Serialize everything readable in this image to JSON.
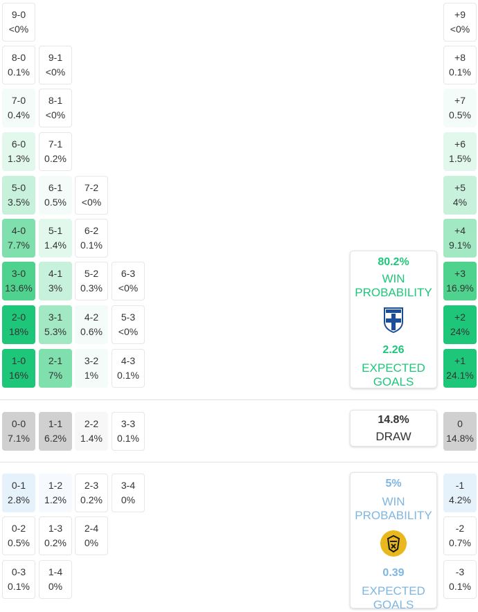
{
  "colors": {
    "home": "#1ec67a",
    "away": "#7fb6e0",
    "draw_text": "#333333",
    "home_shades": [
      "#ffffff",
      "#f3fcf8",
      "#e2f8ed",
      "#c8f1dc",
      "#a2e8c3",
      "#7fdfad",
      "#4fd28e",
      "#1ec67a"
    ],
    "away_shades": [
      "#ffffff",
      "#f6fafe",
      "#e5f1fb"
    ],
    "draw_shades": [
      "#ffffff",
      "#f7f7f7",
      "#e6e6e6",
      "#d0d0d0"
    ]
  },
  "home_scores": [
    {
      "score": "9-0",
      "pct": "<0%",
      "shade": 0
    },
    {
      "score": "8-0",
      "pct": "0.1%",
      "shade": 0
    },
    {
      "score": "9-1",
      "pct": "<0%",
      "shade": 0
    },
    {
      "score": "7-0",
      "pct": "0.4%",
      "shade": 1
    },
    {
      "score": "8-1",
      "pct": "<0%",
      "shade": 0
    },
    {
      "score": "6-0",
      "pct": "1.3%",
      "shade": 2
    },
    {
      "score": "7-1",
      "pct": "0.2%",
      "shade": 0
    },
    {
      "score": "5-0",
      "pct": "3.5%",
      "shade": 3
    },
    {
      "score": "6-1",
      "pct": "0.5%",
      "shade": 1
    },
    {
      "score": "7-2",
      "pct": "<0%",
      "shade": 0
    },
    {
      "score": "4-0",
      "pct": "7.7%",
      "shade": 5
    },
    {
      "score": "5-1",
      "pct": "1.4%",
      "shade": 2
    },
    {
      "score": "6-2",
      "pct": "0.1%",
      "shade": 0
    },
    {
      "score": "3-0",
      "pct": "13.6%",
      "shade": 6
    },
    {
      "score": "4-1",
      "pct": "3%",
      "shade": 3
    },
    {
      "score": "5-2",
      "pct": "0.3%",
      "shade": 0
    },
    {
      "score": "6-3",
      "pct": "<0%",
      "shade": 0
    },
    {
      "score": "2-0",
      "pct": "18%",
      "shade": 7
    },
    {
      "score": "3-1",
      "pct": "5.3%",
      "shade": 4
    },
    {
      "score": "4-2",
      "pct": "0.6%",
      "shade": 1
    },
    {
      "score": "5-3",
      "pct": "<0%",
      "shade": 0
    },
    {
      "score": "1-0",
      "pct": "16%",
      "shade": 7
    },
    {
      "score": "2-1",
      "pct": "7%",
      "shade": 5
    },
    {
      "score": "3-2",
      "pct": "1%",
      "shade": 1
    },
    {
      "score": "4-3",
      "pct": "0.1%",
      "shade": 0
    }
  ],
  "home_margins": [
    {
      "label": "+9",
      "pct": "<0%",
      "shade": 0
    },
    {
      "label": "+8",
      "pct": "0.1%",
      "shade": 0
    },
    {
      "label": "+7",
      "pct": "0.5%",
      "shade": 1
    },
    {
      "label": "+6",
      "pct": "1.5%",
      "shade": 2
    },
    {
      "label": "+5",
      "pct": "4%",
      "shade": 3
    },
    {
      "label": "+4",
      "pct": "9.1%",
      "shade": 4
    },
    {
      "label": "+3",
      "pct": "16.9%",
      "shade": 6
    },
    {
      "label": "+2",
      "pct": "24%",
      "shade": 7
    },
    {
      "label": "+1",
      "pct": "24.1%",
      "shade": 7
    }
  ],
  "draw_scores": [
    {
      "score": "0-0",
      "pct": "7.1%",
      "shade": 3
    },
    {
      "score": "1-1",
      "pct": "6.2%",
      "shade": 3
    },
    {
      "score": "2-2",
      "pct": "1.4%",
      "shade": 1
    },
    {
      "score": "3-3",
      "pct": "0.1%",
      "shade": 0
    }
  ],
  "draw_margin": {
    "label": "0",
    "pct": "14.8%",
    "shade": 3
  },
  "away_scores": [
    {
      "score": "0-1",
      "pct": "2.8%",
      "shade": 2
    },
    {
      "score": "1-2",
      "pct": "1.2%",
      "shade": 1
    },
    {
      "score": "2-3",
      "pct": "0.2%",
      "shade": 0
    },
    {
      "score": "3-4",
      "pct": "0%",
      "shade": 0
    },
    {
      "score": "0-2",
      "pct": "0.5%",
      "shade": 0
    },
    {
      "score": "1-3",
      "pct": "0.2%",
      "shade": 0
    },
    {
      "score": "2-4",
      "pct": "0%",
      "shade": 0
    },
    {
      "score": "0-3",
      "pct": "0.1%",
      "shade": 0
    },
    {
      "score": "1-4",
      "pct": "0%",
      "shade": 0
    }
  ],
  "away_margins": [
    {
      "label": "-1",
      "pct": "4.2%",
      "shade": 2
    },
    {
      "label": "-2",
      "pct": "0.7%",
      "shade": 0
    },
    {
      "label": "-3",
      "pct": "0.1%",
      "shade": 0
    }
  ],
  "home_card": {
    "win_pct": "80.2%",
    "win_label_1": "WIN",
    "win_label_2": "PROBABILITY",
    "crest_icon": "finland-crest-icon",
    "expected_goals": "2.26",
    "xg_label_1": "EXPECTED",
    "xg_label_2": "GOALS"
  },
  "draw_card": {
    "pct": "14.8%",
    "label": "DRAW"
  },
  "away_card": {
    "win_pct": "5%",
    "win_label_1": "WIN",
    "win_label_2": "PROBABILITY",
    "crest_icon": "away-team-crest-icon",
    "expected_goals": "0.39",
    "xg_label_1": "EXPECTED",
    "xg_label_2": "GOALS"
  }
}
